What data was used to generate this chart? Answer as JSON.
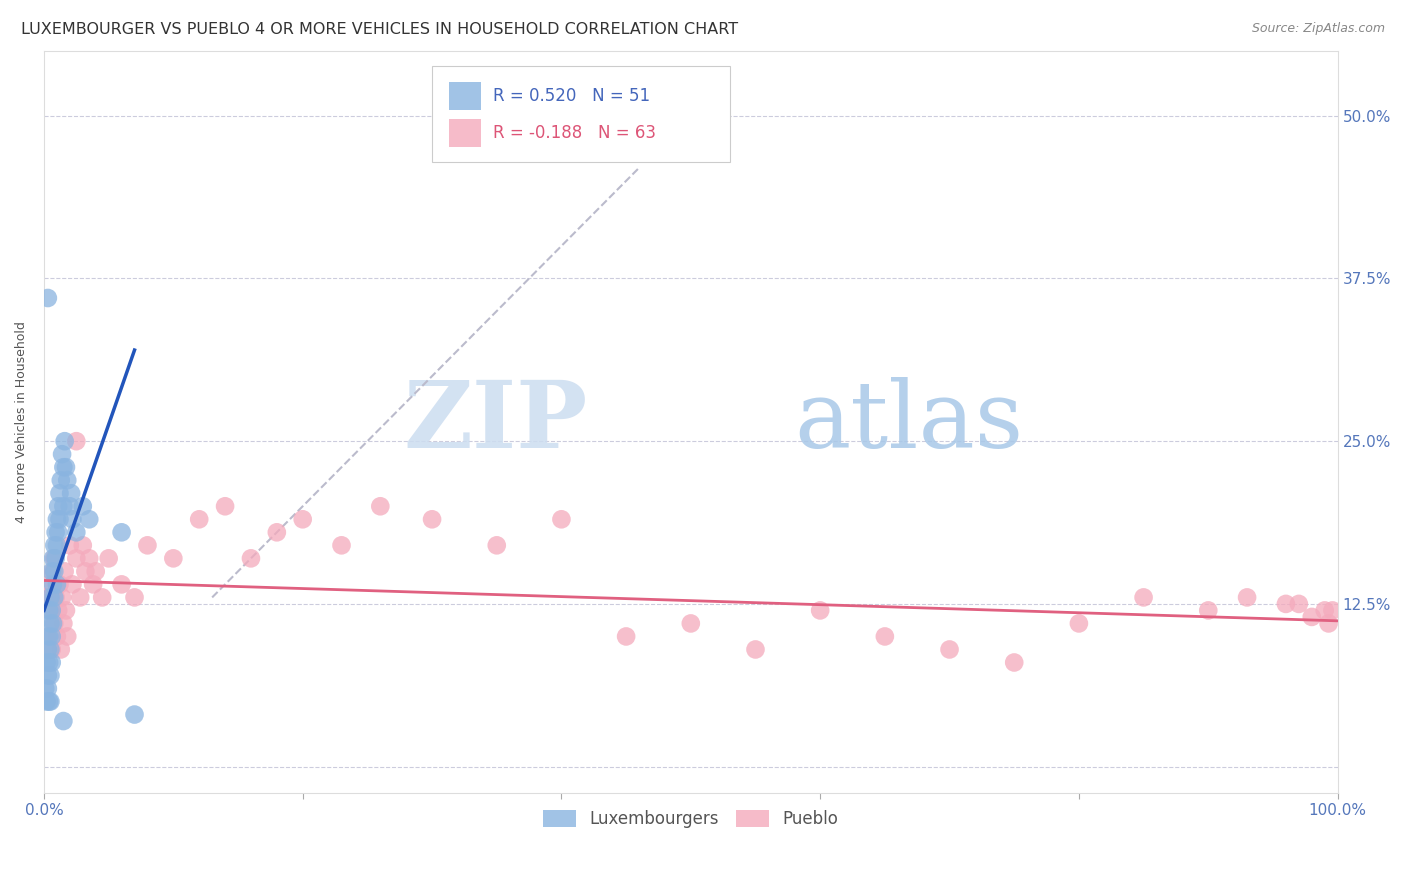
{
  "title": "LUXEMBOURGER VS PUEBLO 4 OR MORE VEHICLES IN HOUSEHOLD CORRELATION CHART",
  "source": "Source: ZipAtlas.com",
  "ylabel": "4 or more Vehicles in Household",
  "xlim": [
    0,
    1.0
  ],
  "ylim": [
    -0.02,
    0.55
  ],
  "xticks": [
    0.0,
    0.2,
    0.4,
    0.6,
    0.8,
    1.0
  ],
  "xticklabels": [
    "0.0%",
    "",
    "",
    "",
    "",
    "100.0%"
  ],
  "yticks": [
    0.0,
    0.125,
    0.25,
    0.375,
    0.5
  ],
  "yticklabels_right": [
    "",
    "12.5%",
    "25.0%",
    "37.5%",
    "50.0%"
  ],
  "legend_labels": [
    "Luxembourgers",
    "Pueblo"
  ],
  "legend_R": [
    "R = 0.520",
    "R = -0.188"
  ],
  "legend_N": [
    "N = 51",
    "N = 63"
  ],
  "blue_color": "#8AB4E0",
  "pink_color": "#F4AABC",
  "blue_line_color": "#2255BB",
  "pink_line_color": "#E06080",
  "diag_line_color": "#BBBBCC",
  "watermark_zip": "ZIP",
  "watermark_atlas": "atlas",
  "title_fontsize": 11.5,
  "source_fontsize": 9,
  "axis_label_fontsize": 9,
  "tick_fontsize": 11,
  "legend_fontsize": 12,
  "blue_scatter_x": [
    0.001,
    0.002,
    0.002,
    0.003,
    0.003,
    0.003,
    0.004,
    0.004,
    0.004,
    0.004,
    0.005,
    0.005,
    0.005,
    0.005,
    0.005,
    0.006,
    0.006,
    0.006,
    0.006,
    0.007,
    0.007,
    0.007,
    0.008,
    0.008,
    0.008,
    0.009,
    0.009,
    0.01,
    0.01,
    0.01,
    0.011,
    0.011,
    0.012,
    0.012,
    0.013,
    0.014,
    0.015,
    0.015,
    0.016,
    0.017,
    0.018,
    0.02,
    0.021,
    0.022,
    0.025,
    0.03,
    0.035,
    0.06,
    0.015,
    0.003,
    0.07
  ],
  "blue_scatter_y": [
    0.06,
    0.05,
    0.08,
    0.07,
    0.09,
    0.06,
    0.1,
    0.08,
    0.12,
    0.05,
    0.13,
    0.11,
    0.09,
    0.07,
    0.05,
    0.15,
    0.12,
    0.1,
    0.08,
    0.16,
    0.14,
    0.11,
    0.17,
    0.15,
    0.13,
    0.18,
    0.16,
    0.19,
    0.17,
    0.14,
    0.2,
    0.18,
    0.21,
    0.19,
    0.22,
    0.24,
    0.23,
    0.2,
    0.25,
    0.23,
    0.22,
    0.2,
    0.21,
    0.19,
    0.18,
    0.2,
    0.19,
    0.18,
    0.035,
    0.36,
    0.04
  ],
  "pink_scatter_x": [
    0.002,
    0.003,
    0.004,
    0.005,
    0.006,
    0.007,
    0.008,
    0.009,
    0.01,
    0.011,
    0.012,
    0.013,
    0.014,
    0.015,
    0.016,
    0.017,
    0.018,
    0.02,
    0.022,
    0.025,
    0.028,
    0.03,
    0.032,
    0.035,
    0.038,
    0.04,
    0.045,
    0.05,
    0.06,
    0.07,
    0.08,
    0.1,
    0.12,
    0.14,
    0.16,
    0.18,
    0.2,
    0.23,
    0.26,
    0.3,
    0.35,
    0.4,
    0.45,
    0.5,
    0.55,
    0.6,
    0.65,
    0.7,
    0.75,
    0.8,
    0.85,
    0.9,
    0.93,
    0.96,
    0.97,
    0.98,
    0.99,
    0.993,
    0.996,
    0.006,
    0.008,
    0.01,
    0.025
  ],
  "pink_scatter_y": [
    0.13,
    0.1,
    0.14,
    0.12,
    0.09,
    0.15,
    0.11,
    0.13,
    0.1,
    0.12,
    0.14,
    0.09,
    0.13,
    0.11,
    0.15,
    0.12,
    0.1,
    0.17,
    0.14,
    0.16,
    0.13,
    0.17,
    0.15,
    0.16,
    0.14,
    0.15,
    0.13,
    0.16,
    0.14,
    0.13,
    0.17,
    0.16,
    0.19,
    0.2,
    0.16,
    0.18,
    0.19,
    0.17,
    0.2,
    0.19,
    0.17,
    0.19,
    0.1,
    0.11,
    0.09,
    0.12,
    0.1,
    0.09,
    0.08,
    0.11,
    0.13,
    0.12,
    0.13,
    0.125,
    0.125,
    0.115,
    0.12,
    0.11,
    0.12,
    0.13,
    0.16,
    0.14,
    0.25
  ],
  "blue_line_x": [
    0.0,
    0.07
  ],
  "blue_line_y": [
    0.12,
    0.32
  ],
  "pink_line_x": [
    0.0,
    1.0
  ],
  "pink_line_y": [
    0.143,
    0.112
  ],
  "diag_line_x": [
    0.13,
    0.46
  ],
  "diag_line_y": [
    0.13,
    0.46
  ]
}
